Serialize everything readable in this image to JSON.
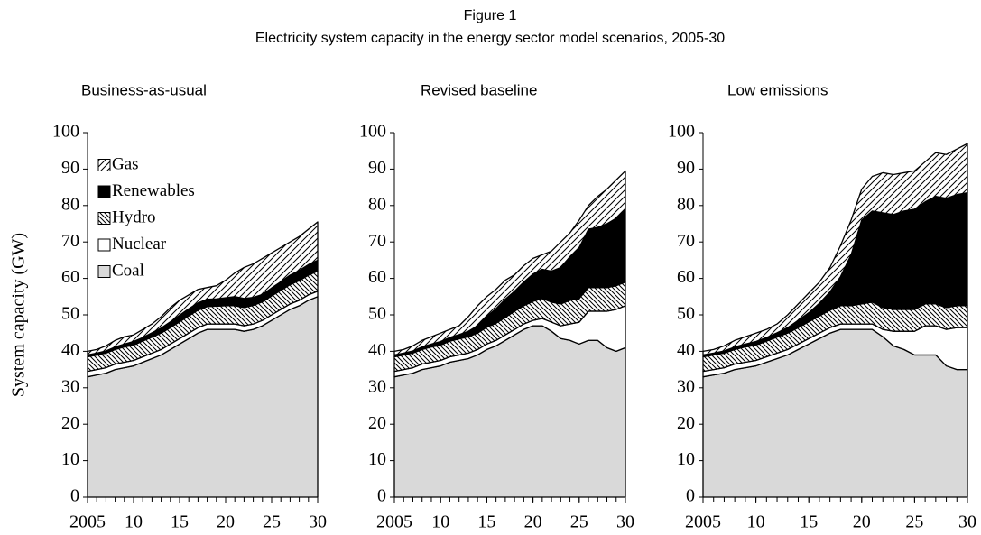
{
  "figure": {
    "title": "Figure 1",
    "subtitle": "Electricity system capacity in the energy sector model scenarios, 2005-30"
  },
  "chart_data": [
    {
      "type": "area",
      "stacked": true,
      "title": "Business-as-usual",
      "ylabel": "System capacity (GW)",
      "legend": "upper left",
      "grid": false,
      "x": [
        2005,
        2006,
        2007,
        2008,
        2009,
        2010,
        2011,
        2012,
        2013,
        2014,
        2015,
        2016,
        2017,
        2018,
        2019,
        2020,
        2021,
        2022,
        2023,
        2024,
        2025,
        2026,
        2027,
        2028,
        2029,
        2030
      ],
      "xlim": [
        2005,
        2030
      ],
      "xticks": [
        2005,
        {
          "value": 2010,
          "label": "10"
        },
        {
          "value": 2015,
          "label": "15"
        },
        {
          "value": 2020,
          "label": "20"
        },
        {
          "value": 2025,
          "label": "25"
        },
        {
          "value": 2030,
          "label": "30"
        }
      ],
      "ylim": [
        0,
        100
      ],
      "yticks": [
        0,
        10,
        20,
        30,
        40,
        50,
        60,
        70,
        80,
        90,
        100
      ],
      "series": [
        {
          "name": "Gas",
          "color": "#ffffff",
          "hatch": "forward",
          "values": [
            1,
            1,
            1.4,
            1.8,
            2,
            1.8,
            2.2,
            2.4,
            3.1,
            3.9,
            4.1,
            3.8,
            3.7,
            3.2,
            3.6,
            4.8,
            6.5,
            8.5,
            9.2,
            9.9,
            9.6,
            9.4,
            9.1,
            9.3,
            9.7,
            10.5
          ]
        },
        {
          "name": "Renewables",
          "color": "#000000",
          "hatch": null,
          "values": [
            0.5,
            0.5,
            0.6,
            0.7,
            0.8,
            1,
            1,
            1.2,
            1.4,
            1.6,
            1.8,
            2,
            2,
            2,
            2,
            2.2,
            2.5,
            2.5,
            2.2,
            2,
            2.2,
            2.4,
            2.6,
            2.8,
            2.9,
            3
          ]
        },
        {
          "name": "Hydro",
          "color": "#ffffff",
          "hatch": "backward",
          "values": [
            4,
            4,
            4,
            4,
            4.2,
            4.2,
            4.3,
            4.4,
            4.5,
            4.5,
            4.6,
            4.7,
            4.8,
            4.8,
            4.9,
            5,
            5,
            5,
            5.1,
            5.1,
            5.2,
            5.2,
            5.3,
            5.4,
            5.4,
            5.5
          ]
        },
        {
          "name": "Nuclear",
          "color": "#ffffff",
          "hatch": null,
          "values": [
            1.5,
            1.5,
            1.5,
            1.5,
            1.5,
            1.5,
            1.5,
            1.5,
            1.5,
            1.5,
            1.5,
            1.5,
            1.5,
            1.5,
            1.5,
            1.5,
            1.5,
            1.5,
            1.5,
            1.5,
            1.5,
            1.5,
            1.5,
            1.5,
            1.5,
            1.5
          ]
        },
        {
          "name": "Coal",
          "color": "#d9d9d9",
          "hatch": null,
          "values": [
            33,
            33.5,
            34,
            35,
            35.5,
            36,
            37,
            38,
            39,
            40.5,
            42,
            43.5,
            45,
            46,
            46,
            46,
            46,
            45.5,
            46,
            47,
            48.5,
            50,
            51.5,
            52.5,
            54,
            55
          ]
        }
      ]
    },
    {
      "type": "area",
      "stacked": true,
      "title": "Revised baseline",
      "grid": false,
      "x": [
        2005,
        2006,
        2007,
        2008,
        2009,
        2010,
        2011,
        2012,
        2013,
        2014,
        2015,
        2016,
        2017,
        2018,
        2019,
        2020,
        2021,
        2022,
        2023,
        2024,
        2025,
        2026,
        2027,
        2028,
        2029,
        2030
      ],
      "xlim": [
        2005,
        2030
      ],
      "xticks": [
        2005,
        {
          "value": 2010,
          "label": "10"
        },
        {
          "value": 2015,
          "label": "15"
        },
        {
          "value": 2020,
          "label": "20"
        },
        {
          "value": 2025,
          "label": "25"
        },
        {
          "value": 2030,
          "label": "30"
        }
      ],
      "ylim": [
        0,
        100
      ],
      "yticks": [
        0,
        10,
        20,
        30,
        40,
        50,
        60,
        70,
        80,
        90,
        100
      ],
      "series": [
        {
          "name": "Gas",
          "color": "#ffffff",
          "hatch": "forward",
          "values": [
            1,
            1,
            1.4,
            1.8,
            2,
            2.3,
            2.2,
            2.4,
            4,
            5.5,
            5.4,
            5.3,
            5.2,
            4.5,
            4.5,
            4.3,
            4,
            5.5,
            7,
            6.5,
            7.5,
            6.5,
            8.5,
            9.5,
            10.5,
            10.5
          ]
        },
        {
          "name": "Renewables",
          "color": "#000000",
          "hatch": null,
          "values": [
            0.5,
            0.5,
            0.6,
            0.7,
            0.8,
            1,
            1,
            1.2,
            1.5,
            2,
            3,
            4,
            5,
            5.5,
            6.5,
            7.5,
            8,
            8.5,
            10,
            12,
            14,
            16,
            16.5,
            17.5,
            18.5,
            20
          ]
        },
        {
          "name": "Hydro",
          "color": "#ffffff",
          "hatch": "backward",
          "values": [
            4,
            4,
            4,
            4,
            4.2,
            4.2,
            4.3,
            4.4,
            4.5,
            4.5,
            4.6,
            4.7,
            4.8,
            5,
            5,
            5.2,
            5.5,
            5.5,
            6,
            6.5,
            6.5,
            6.5,
            6.5,
            6.5,
            6.5,
            6.5
          ]
        },
        {
          "name": "Nuclear",
          "color": "#ffffff",
          "hatch": null,
          "values": [
            1.5,
            1.5,
            1.5,
            1.5,
            1.5,
            1.5,
            1.5,
            1.5,
            1.5,
            1.5,
            1.5,
            1.5,
            1.5,
            1.5,
            1.5,
            1.5,
            2,
            2.5,
            3.5,
            4.5,
            6,
            8,
            8,
            10,
            11.5,
            11.5
          ]
        },
        {
          "name": "Coal",
          "color": "#d9d9d9",
          "hatch": null,
          "values": [
            33,
            33.5,
            34,
            35,
            35.5,
            36,
            37,
            37.5,
            38,
            39,
            40.5,
            41.5,
            43,
            44.5,
            46,
            47,
            47,
            45.5,
            43.5,
            43,
            42,
            43,
            43,
            41,
            40,
            41
          ]
        }
      ]
    },
    {
      "type": "area",
      "stacked": true,
      "title": "Low emissions",
      "grid": false,
      "x": [
        2005,
        2006,
        2007,
        2008,
        2009,
        2010,
        2011,
        2012,
        2013,
        2014,
        2015,
        2016,
        2017,
        2018,
        2019,
        2020,
        2021,
        2022,
        2023,
        2024,
        2025,
        2026,
        2027,
        2028,
        2029,
        2030
      ],
      "xlim": [
        2005,
        2030
      ],
      "xticks": [
        2005,
        {
          "value": 2010,
          "label": "10"
        },
        {
          "value": 2015,
          "label": "15"
        },
        {
          "value": 2020,
          "label": "20"
        },
        {
          "value": 2025,
          "label": "25"
        },
        {
          "value": 2030,
          "label": "30"
        }
      ],
      "ylim": [
        0,
        100
      ],
      "yticks": [
        0,
        10,
        20,
        30,
        40,
        50,
        60,
        70,
        80,
        90,
        100
      ],
      "series": [
        {
          "name": "Gas",
          "color": "#ffffff",
          "hatch": "forward",
          "values": [
            1,
            1,
            1.4,
            1.8,
            2,
            2.3,
            2.2,
            2.4,
            3.5,
            4.5,
            5.4,
            5.8,
            6.7,
            8.5,
            9.5,
            8.5,
            9.5,
            11,
            11,
            10.5,
            10.5,
            11,
            12,
            12,
            12.5,
            13.5
          ]
        },
        {
          "name": "Renewables",
          "color": "#000000",
          "hatch": null,
          "values": [
            0.5,
            0.5,
            0.6,
            0.7,
            0.8,
            1,
            1,
            1.2,
            1.5,
            2,
            2.5,
            3.5,
            5,
            8,
            14,
            23,
            25,
            26,
            26,
            27,
            27.5,
            28,
            29.5,
            30,
            30.5,
            31
          ]
        },
        {
          "name": "Hydro",
          "color": "#ffffff",
          "hatch": "backward",
          "values": [
            4,
            4,
            4,
            4,
            4.2,
            4.2,
            4.3,
            4.4,
            4.5,
            4.5,
            4.6,
            4.7,
            4.8,
            5,
            5,
            5.5,
            6,
            6,
            6,
            6,
            6,
            6,
            6,
            6,
            6,
            6
          ]
        },
        {
          "name": "Nuclear",
          "color": "#ffffff",
          "hatch": null,
          "values": [
            1.5,
            1.5,
            1.5,
            1.5,
            1.5,
            1.5,
            1.5,
            1.5,
            1.5,
            1.5,
            1.5,
            1.5,
            1.5,
            1.5,
            1.5,
            1.5,
            1.5,
            2,
            4,
            5,
            6.5,
            8,
            8,
            10,
            11.5,
            11.5
          ]
        },
        {
          "name": "Coal",
          "color": "#d9d9d9",
          "hatch": null,
          "values": [
            33,
            33.5,
            34,
            35,
            35.5,
            36,
            37,
            38,
            39,
            40.5,
            42,
            43.5,
            45,
            46,
            46,
            46,
            46,
            44,
            41.5,
            40.5,
            39,
            39,
            39,
            36,
            35,
            35
          ]
        }
      ]
    }
  ]
}
